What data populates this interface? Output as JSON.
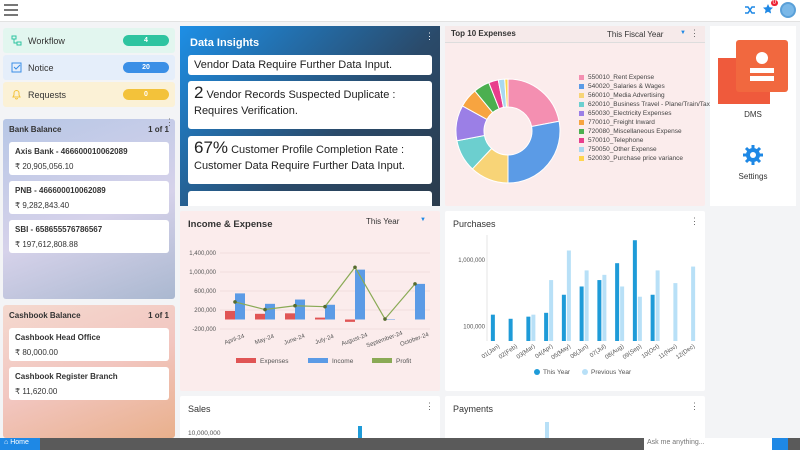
{
  "topbar": {
    "notification_count": "0"
  },
  "quick": [
    {
      "label": "Workflow",
      "count": "4",
      "color": "#2ec4a0",
      "bg": "#e2f6ef"
    },
    {
      "label": "Notice",
      "count": "20",
      "color": "#3a8fe6",
      "bg": "#e5eefa"
    },
    {
      "label": "Requests",
      "count": "0",
      "color": "#f3c23a",
      "bg": "#fbf1d6"
    }
  ],
  "bank": {
    "title": "Bank Balance",
    "pager": "1 of 1",
    "accounts": [
      {
        "name": "Axis Bank - 466600010062089",
        "amount": "₹ 20,905,056.10"
      },
      {
        "name": "PNB - 466600010062089",
        "amount": "₹ 9,282,843.40"
      },
      {
        "name": "SBI - 658655576786567",
        "amount": "₹ 197,612,808.88"
      }
    ]
  },
  "cashbook": {
    "title": "Cashbook Balance",
    "pager": "1 of 1",
    "accounts": [
      {
        "name": "Cashbook Head Office",
        "amount": "₹ 80,000.00"
      },
      {
        "name": "Cashbook Register Branch",
        "amount": "₹ 11,620.00"
      }
    ]
  },
  "insights": {
    "title": "Data Insights",
    "items": [
      {
        "prefix": "",
        "text": "Vendor Data Require Further Data Input."
      },
      {
        "prefix": "2",
        "text": " Vendor Records Suspected Duplicate : Requires Verification."
      },
      {
        "prefix": "67%",
        "text": " Customer Profile Completion Rate : Customer Data Require Further Data Input."
      }
    ]
  },
  "expenses": {
    "title": "Top 10 Expenses",
    "period": "This Fiscal Year"
  },
  "income": {
    "title": "Income & Expense",
    "period": "This Year"
  },
  "purchases": {
    "title": "Purchases"
  },
  "sales": {
    "title": "Sales",
    "tick": "10,000,000"
  },
  "payments": {
    "title": "Payments"
  },
  "side": {
    "dms": "DMS",
    "settings": "Settings"
  },
  "footer": {
    "home": "Home",
    "ask": "Ask me anything..."
  },
  "chart_data": [
    {
      "type": "pie",
      "title": "Top 10 Expenses",
      "categories": [
        "550010_Rent Expense",
        "540020_Salaries & Wages",
        "560010_Media Advertising",
        "620010_Business Travel - Plane/Train/Taxi",
        "650030_Electricity Expenses",
        "770010_Freight Inward",
        "720080_Miscellaneous Expense",
        "570010_Telephone",
        "750050_Other Expense",
        "520030_Purchase price variance"
      ],
      "values": [
        22,
        28,
        12,
        10,
        11,
        6,
        5,
        3,
        2,
        1
      ],
      "colors": [
        "#f48fb1",
        "#5b9be6",
        "#f8d477",
        "#6ccfcf",
        "#9b7fe6",
        "#f7a440",
        "#4caf50",
        "#e83e8c",
        "#a8d8f0",
        "#ffd54f"
      ]
    },
    {
      "type": "bar",
      "title": "Income & Expense",
      "categories": [
        "April-24",
        "May-24",
        "June-24",
        "July-24",
        "August-24",
        "September-24",
        "October-24"
      ],
      "series": [
        {
          "name": "Expenses",
          "values": [
            180000,
            120000,
            130000,
            40000,
            -50000,
            0,
            0
          ],
          "color": "#e05555"
        },
        {
          "name": "Income",
          "values": [
            550000,
            330000,
            420000,
            310000,
            1050000,
            10000,
            750000
          ],
          "color": "#5b9be6"
        },
        {
          "name": "Profit",
          "values": [
            370000,
            210000,
            290000,
            270000,
            1100000,
            10000,
            750000
          ],
          "color": "#8aaa55"
        }
      ],
      "yticks": [
        "1,400,000",
        "1,000,000",
        "600,000",
        "200,000",
        "-200,000"
      ],
      "ylim": [
        -200000,
        1400000
      ]
    },
    {
      "type": "bar",
      "title": "Purchases",
      "categories": [
        "01(Jan)",
        "02(Feb)",
        "03(Mar)",
        "04(Apr)",
        "05(May)",
        "06(Jun)",
        "07(Jul)",
        "08(Aug)",
        "09(Sep)",
        "10(Oct)",
        "11(Nov)",
        "12(Dec)"
      ],
      "series": [
        {
          "name": "This Year",
          "values": [
            150000,
            130000,
            140000,
            160000,
            300000,
            400000,
            500000,
            900000,
            2000000,
            300000,
            0,
            0
          ],
          "color": "#1e9bd8"
        },
        {
          "name": "Previous Year",
          "values": [
            0,
            0,
            150000,
            500000,
            1400000,
            700000,
            600000,
            400000,
            280000,
            700000,
            450000,
            800000
          ],
          "color": "#b8e0f7"
        }
      ],
      "yticks": [
        "1,000,000",
        "100,000"
      ],
      "scale": "log"
    }
  ]
}
